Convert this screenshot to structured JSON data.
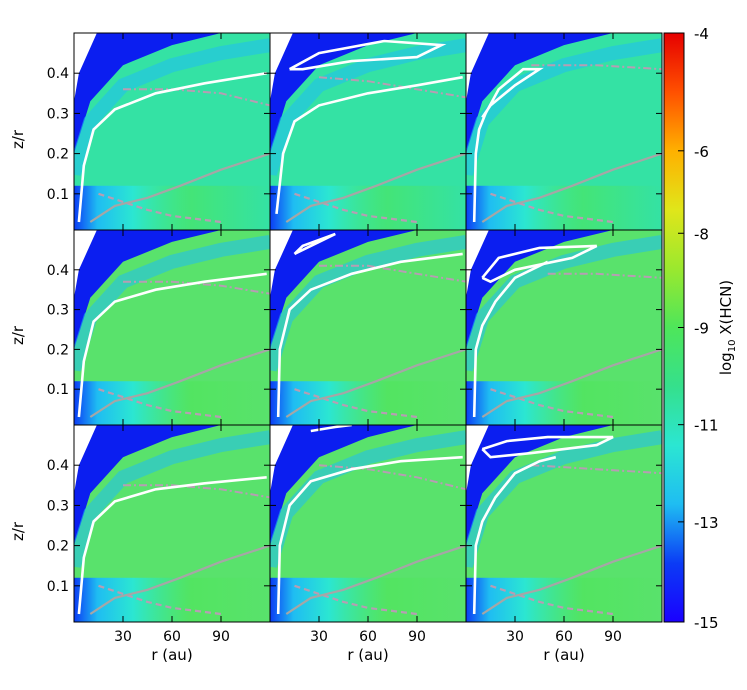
{
  "chart_data": {
    "type": "heatmap",
    "layout": {
      "rows": 3,
      "cols": 3
    },
    "xlabel": "r (au)",
    "ylabel": "z/r",
    "x_ticks": [
      30,
      60,
      90
    ],
    "x_tick_labels": [
      "30",
      "60",
      "90"
    ],
    "xlim": [
      0,
      120
    ],
    "y_ticks": [
      0.1,
      0.2,
      0.3,
      0.4
    ],
    "y_tick_labels": [
      "0.1",
      "0.2",
      "0.3",
      "0.4"
    ],
    "ylim": [
      0.01,
      0.5
    ],
    "colorbar": {
      "label_main": "log",
      "label_sub": "10",
      "label_rest": " X(HCN)",
      "ticks": [
        -4,
        -6,
        -8,
        -9,
        -11,
        -13,
        -15
      ],
      "tick_labels": [
        "-4",
        "-6",
        "-8",
        "-9",
        "-11",
        "-13",
        "-15"
      ],
      "range": [
        -15,
        -4
      ],
      "colors": [
        "#1a00ff",
        "#0b3cf5",
        "#1fbdf2",
        "#2be6d2",
        "#35e08c",
        "#4ee65a",
        "#9be82e",
        "#e0e61a",
        "#ffb000",
        "#ff5000",
        "#e60000"
      ]
    },
    "contours": {
      "white_solid_color": "#ffffff",
      "gray_solid_color": "#a6a6a6",
      "gray_dashed_color": "#b79db3"
    },
    "panels": [
      {
        "row": 0,
        "col": 0,
        "background_color": "#34e2a4",
        "white_contour": [
          [
            3,
            0.03
          ],
          [
            6,
            0.17
          ],
          [
            12,
            0.26
          ],
          [
            25,
            0.31
          ],
          [
            50,
            0.35
          ],
          [
            80,
            0.375
          ],
          [
            118,
            0.4
          ]
        ],
        "white_loop": null,
        "dashdot": [
          [
            30,
            0.36
          ],
          [
            60,
            0.36
          ],
          [
            90,
            0.35
          ],
          [
            120,
            0.32
          ]
        ],
        "gray_curve": [
          [
            10,
            0.03
          ],
          [
            25,
            0.07
          ],
          [
            45,
            0.09
          ],
          [
            65,
            0.12
          ],
          [
            90,
            0.16
          ],
          [
            120,
            0.2
          ]
        ],
        "dashed": [
          [
            15,
            0.1
          ],
          [
            30,
            0.08
          ],
          [
            45,
            0.06
          ],
          [
            60,
            0.045
          ],
          [
            90,
            0.03
          ]
        ]
      },
      {
        "row": 0,
        "col": 1,
        "background_color": "#34e2a4",
        "white_contour": [
          [
            4,
            0.05
          ],
          [
            8,
            0.2
          ],
          [
            15,
            0.28
          ],
          [
            30,
            0.32
          ],
          [
            60,
            0.35
          ],
          [
            90,
            0.37
          ],
          [
            118,
            0.39
          ]
        ],
        "white_loop": [
          [
            12,
            0.41
          ],
          [
            30,
            0.45
          ],
          [
            70,
            0.48
          ],
          [
            105,
            0.47
          ],
          [
            90,
            0.44
          ],
          [
            50,
            0.43
          ],
          [
            20,
            0.41
          ],
          [
            12,
            0.41
          ]
        ],
        "dashdot": [
          [
            30,
            0.39
          ],
          [
            60,
            0.38
          ],
          [
            90,
            0.36
          ],
          [
            120,
            0.34
          ]
        ],
        "gray_curve": [
          [
            10,
            0.03
          ],
          [
            25,
            0.07
          ],
          [
            45,
            0.09
          ],
          [
            65,
            0.12
          ],
          [
            90,
            0.16
          ],
          [
            120,
            0.2
          ]
        ],
        "dashed": [
          [
            15,
            0.1
          ],
          [
            30,
            0.08
          ],
          [
            45,
            0.06
          ],
          [
            60,
            0.045
          ],
          [
            90,
            0.03
          ]
        ]
      },
      {
        "row": 0,
        "col": 2,
        "background_color": "#34e2a4",
        "white_contour": [
          [
            5,
            0.03
          ],
          [
            6,
            0.2
          ],
          [
            8,
            0.26
          ],
          [
            12,
            0.3
          ],
          [
            20,
            0.36
          ],
          [
            35,
            0.41
          ],
          [
            45,
            0.41
          ],
          [
            30,
            0.37
          ],
          [
            15,
            0.32
          ],
          [
            10,
            0.29
          ]
        ],
        "white_loop": null,
        "dashdot": [
          [
            40,
            0.42
          ],
          [
            80,
            0.42
          ],
          [
            120,
            0.41
          ]
        ],
        "gray_curve": [
          [
            10,
            0.03
          ],
          [
            25,
            0.07
          ],
          [
            45,
            0.09
          ],
          [
            65,
            0.12
          ],
          [
            90,
            0.16
          ],
          [
            120,
            0.2
          ]
        ],
        "dashed": [
          [
            15,
            0.1
          ],
          [
            30,
            0.08
          ],
          [
            45,
            0.06
          ],
          [
            60,
            0.045
          ],
          [
            90,
            0.03
          ]
        ]
      },
      {
        "row": 1,
        "col": 0,
        "background_color": "#59e26c",
        "white_contour": [
          [
            3,
            0.03
          ],
          [
            6,
            0.17
          ],
          [
            12,
            0.27
          ],
          [
            25,
            0.32
          ],
          [
            50,
            0.35
          ],
          [
            80,
            0.37
          ],
          [
            118,
            0.39
          ]
        ],
        "white_loop": null,
        "dashdot": [
          [
            30,
            0.37
          ],
          [
            60,
            0.37
          ],
          [
            90,
            0.36
          ],
          [
            120,
            0.34
          ]
        ],
        "gray_curve": [
          [
            10,
            0.03
          ],
          [
            25,
            0.07
          ],
          [
            45,
            0.09
          ],
          [
            65,
            0.12
          ],
          [
            90,
            0.16
          ],
          [
            120,
            0.2
          ]
        ],
        "dashed": [
          [
            15,
            0.1
          ],
          [
            30,
            0.08
          ],
          [
            45,
            0.06
          ],
          [
            60,
            0.045
          ],
          [
            90,
            0.03
          ]
        ]
      },
      {
        "row": 1,
        "col": 1,
        "background_color": "#59e26c",
        "white_contour": [
          [
            5,
            0.03
          ],
          [
            6,
            0.2
          ],
          [
            12,
            0.3
          ],
          [
            25,
            0.35
          ],
          [
            50,
            0.39
          ],
          [
            80,
            0.42
          ],
          [
            118,
            0.44
          ]
        ],
        "white_loop": [
          [
            15,
            0.44
          ],
          [
            30,
            0.47
          ],
          [
            40,
            0.49
          ],
          [
            20,
            0.46
          ],
          [
            15,
            0.44
          ]
        ],
        "dashdot": [
          [
            30,
            0.41
          ],
          [
            60,
            0.41
          ],
          [
            90,
            0.39
          ],
          [
            120,
            0.37
          ]
        ],
        "gray_curve": [
          [
            10,
            0.03
          ],
          [
            25,
            0.07
          ],
          [
            45,
            0.09
          ],
          [
            65,
            0.12
          ],
          [
            90,
            0.16
          ],
          [
            120,
            0.2
          ]
        ],
        "dashed": [
          [
            15,
            0.1
          ],
          [
            30,
            0.08
          ],
          [
            45,
            0.06
          ],
          [
            60,
            0.045
          ],
          [
            90,
            0.03
          ]
        ]
      },
      {
        "row": 1,
        "col": 2,
        "background_color": "#59e26c",
        "white_contour": [
          [
            5,
            0.03
          ],
          [
            6,
            0.2
          ],
          [
            10,
            0.26
          ],
          [
            18,
            0.32
          ],
          [
            30,
            0.38
          ],
          [
            45,
            0.41
          ],
          [
            50,
            0.42
          ]
        ],
        "white_loop": [
          [
            10,
            0.38
          ],
          [
            20,
            0.43
          ],
          [
            45,
            0.455
          ],
          [
            80,
            0.46
          ],
          [
            65,
            0.43
          ],
          [
            30,
            0.4
          ],
          [
            15,
            0.37
          ],
          [
            10,
            0.38
          ]
        ],
        "dashdot": [
          [
            50,
            0.39
          ],
          [
            80,
            0.39
          ],
          [
            120,
            0.38
          ]
        ],
        "gray_curve": [
          [
            10,
            0.03
          ],
          [
            25,
            0.07
          ],
          [
            45,
            0.09
          ],
          [
            65,
            0.12
          ],
          [
            90,
            0.16
          ],
          [
            120,
            0.2
          ]
        ],
        "dashed": [
          [
            15,
            0.1
          ],
          [
            30,
            0.08
          ],
          [
            45,
            0.06
          ],
          [
            60,
            0.045
          ],
          [
            90,
            0.03
          ]
        ]
      },
      {
        "row": 2,
        "col": 0,
        "background_color": "#59e26c",
        "white_contour": [
          [
            3,
            0.03
          ],
          [
            6,
            0.17
          ],
          [
            12,
            0.26
          ],
          [
            25,
            0.31
          ],
          [
            50,
            0.34
          ],
          [
            80,
            0.355
          ],
          [
            118,
            0.37
          ]
        ],
        "white_loop": null,
        "dashdot": [
          [
            30,
            0.35
          ],
          [
            60,
            0.35
          ],
          [
            90,
            0.34
          ],
          [
            120,
            0.32
          ]
        ],
        "gray_curve": [
          [
            10,
            0.03
          ],
          [
            25,
            0.07
          ],
          [
            45,
            0.09
          ],
          [
            65,
            0.12
          ],
          [
            90,
            0.16
          ],
          [
            120,
            0.2
          ]
        ],
        "dashed": [
          [
            15,
            0.1
          ],
          [
            30,
            0.08
          ],
          [
            45,
            0.06
          ],
          [
            60,
            0.045
          ],
          [
            90,
            0.03
          ]
        ]
      },
      {
        "row": 2,
        "col": 1,
        "background_color": "#59e26c",
        "white_contour": [
          [
            5,
            0.03
          ],
          [
            6,
            0.2
          ],
          [
            12,
            0.3
          ],
          [
            25,
            0.36
          ],
          [
            50,
            0.39
          ],
          [
            80,
            0.41
          ],
          [
            118,
            0.42
          ]
        ],
        "white_loop": [
          [
            25,
            0.485
          ],
          [
            40,
            0.495
          ],
          [
            50,
            0.5
          ]
        ],
        "dashdot": [
          [
            30,
            0.4
          ],
          [
            60,
            0.39
          ],
          [
            90,
            0.37
          ],
          [
            120,
            0.34
          ]
        ],
        "gray_curve": [
          [
            10,
            0.03
          ],
          [
            25,
            0.07
          ],
          [
            45,
            0.09
          ],
          [
            65,
            0.12
          ],
          [
            90,
            0.16
          ],
          [
            120,
            0.2
          ]
        ],
        "dashed": [
          [
            15,
            0.1
          ],
          [
            30,
            0.08
          ],
          [
            45,
            0.06
          ],
          [
            60,
            0.045
          ],
          [
            90,
            0.03
          ]
        ]
      },
      {
        "row": 2,
        "col": 2,
        "background_color": "#59e26c",
        "white_contour": [
          [
            5,
            0.03
          ],
          [
            6,
            0.2
          ],
          [
            10,
            0.26
          ],
          [
            18,
            0.32
          ],
          [
            30,
            0.38
          ],
          [
            45,
            0.41
          ],
          [
            55,
            0.42
          ]
        ],
        "white_loop": [
          [
            10,
            0.44
          ],
          [
            25,
            0.46
          ],
          [
            50,
            0.47
          ],
          [
            90,
            0.47
          ],
          [
            80,
            0.45
          ],
          [
            40,
            0.43
          ],
          [
            15,
            0.42
          ],
          [
            10,
            0.44
          ]
        ],
        "dashdot": [
          [
            40,
            0.4
          ],
          [
            80,
            0.39
          ],
          [
            120,
            0.38
          ]
        ],
        "gray_curve": [
          [
            10,
            0.03
          ],
          [
            25,
            0.07
          ],
          [
            45,
            0.09
          ],
          [
            65,
            0.12
          ],
          [
            90,
            0.16
          ],
          [
            120,
            0.2
          ]
        ],
        "dashed": [
          [
            15,
            0.1
          ],
          [
            30,
            0.08
          ],
          [
            45,
            0.06
          ],
          [
            60,
            0.045
          ],
          [
            90,
            0.03
          ]
        ]
      }
    ]
  }
}
